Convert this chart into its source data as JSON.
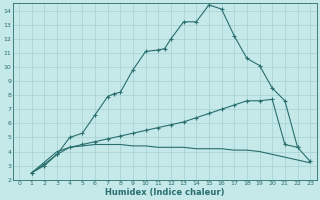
{
  "title": "",
  "xlabel": "Humidex (Indice chaleur)",
  "bg_color": "#c5e8e8",
  "line_color": "#2a6e6e",
  "grid_color": "#a8d0d0",
  "xlim": [
    -0.5,
    23.5
  ],
  "ylim": [
    2,
    14.5
  ],
  "xticks": [
    0,
    1,
    2,
    3,
    4,
    5,
    6,
    7,
    8,
    9,
    10,
    11,
    12,
    13,
    14,
    15,
    16,
    17,
    18,
    19,
    20,
    21,
    22,
    23
  ],
  "yticks": [
    2,
    3,
    4,
    5,
    6,
    7,
    8,
    9,
    10,
    11,
    12,
    13,
    14
  ],
  "curve1_x": [
    1,
    2,
    3,
    4,
    5,
    6,
    7,
    7.5,
    8,
    9,
    10,
    11,
    11.5,
    12,
    13,
    14,
    15,
    16,
    17,
    18,
    19,
    20,
    21,
    22
  ],
  "curve1_y": [
    2.5,
    3.1,
    3.8,
    5.0,
    5.3,
    6.6,
    7.9,
    8.1,
    8.2,
    9.8,
    11.1,
    11.2,
    11.3,
    12.0,
    13.2,
    13.2,
    14.4,
    14.1,
    12.2,
    10.6,
    10.1,
    8.5,
    7.6,
    4.3
  ],
  "curve2_x": [
    1,
    2,
    3,
    4,
    5,
    6,
    7,
    8,
    9,
    10,
    11,
    12,
    13,
    14,
    15,
    16,
    17,
    18,
    19,
    20,
    21,
    22,
    23
  ],
  "curve2_y": [
    2.5,
    3.0,
    3.8,
    4.3,
    4.5,
    4.7,
    4.9,
    5.1,
    5.3,
    5.5,
    5.7,
    5.9,
    6.1,
    6.4,
    6.7,
    7.0,
    7.3,
    7.6,
    7.6,
    7.7,
    4.5,
    4.3,
    3.3
  ],
  "curve3_x": [
    1,
    3,
    4,
    5,
    6,
    7,
    8,
    9,
    10,
    11,
    12,
    13,
    14,
    15,
    16,
    17,
    18,
    19,
    20,
    21,
    22,
    23
  ],
  "curve3_y": [
    2.5,
    4.0,
    4.3,
    4.4,
    4.5,
    4.5,
    4.5,
    4.4,
    4.4,
    4.3,
    4.3,
    4.3,
    4.2,
    4.2,
    4.2,
    4.1,
    4.1,
    4.0,
    3.8,
    3.6,
    3.4,
    3.2
  ]
}
